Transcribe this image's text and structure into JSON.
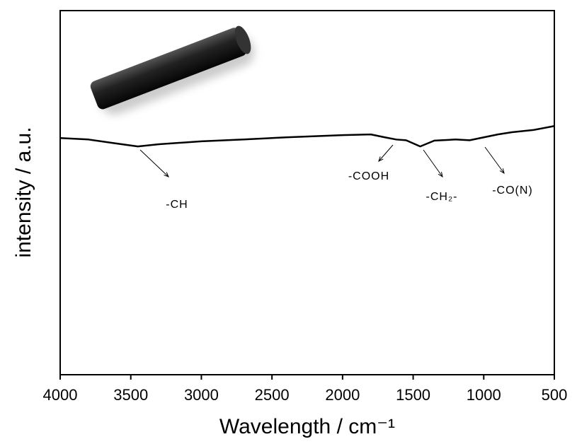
{
  "chart_data": {
    "type": "line",
    "x_label": "Wavelength / cm⁻¹",
    "y_label": "intensity / a.u.",
    "x": [
      4000,
      3800,
      3600,
      3450,
      3300,
      3000,
      2700,
      2400,
      2000,
      1800,
      1700,
      1620,
      1550,
      1450,
      1350,
      1200,
      1100,
      1000,
      900,
      800,
      650,
      500
    ],
    "series": [
      {
        "color": "#000000",
        "values": [
          65.0,
          64.6,
          63.5,
          62.7,
          63.3,
          64.1,
          64.6,
          65.2,
          65.8,
          66.0,
          65.2,
          64.6,
          64.4,
          62.7,
          64.3,
          64.6,
          64.4,
          65.2,
          66.0,
          66.6,
          67.2,
          68.3
        ]
      }
    ],
    "xlim": [
      4000,
      500
    ],
    "xticks": [
      4000,
      3500,
      3000,
      2500,
      2000,
      1500,
      1000,
      500
    ],
    "ylim": [
      0,
      100
    ],
    "annotations": [
      "-CH",
      "-COOH",
      "-CH₂-",
      "-CO(N)"
    ]
  }
}
